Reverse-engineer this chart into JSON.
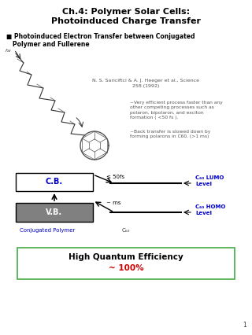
{
  "title_line1": "Ch.4: Polymer Solar Cells:",
  "title_line2": "Photoinduced Charge Transfer",
  "bullet_line1": "■ Photoinduced Electron Transfer between Conjugated",
  "bullet_line2": "   Polymer and Fullerene",
  "reference": "N. S. Sariciftci & A. J. Heeger et al., Science\n258 (1992)",
  "note1": "~Very efficient process faster than any\nother competing processes such as\npolaron, bipolaron, and exciton\nformation ( <50 fs ).",
  "note2": "~Back transfer is slowed down by\nforming polarons in C60. (>1 ms)",
  "cb_label": "C.B.",
  "vb_label": "V.B.",
  "conj_label": "Conjugated Polymer",
  "c60_label": "C₆₀",
  "lumo_label": "C₆₀ LUMO\nLevel",
  "homo_label": "C₆₀ HOMO\nLevel",
  "arrow1_label": "≤ 50fs",
  "arrow2_label": "~ ms",
  "box_label_line1": "High Quantum Efficiency",
  "box_label_line2": "~ 100%",
  "bg_color": "#ffffff",
  "title_color": "#000000",
  "lumo_color": "#0000cc",
  "homo_color": "#0000cc",
  "box_border_color": "#44aa44",
  "box_text_color": "#000000",
  "box_percent_color": "#cc0000",
  "conj_color": "#0000cc",
  "cb_text_color": "#0000cc",
  "vb_text_color": "#ffffff",
  "page_number": "1"
}
